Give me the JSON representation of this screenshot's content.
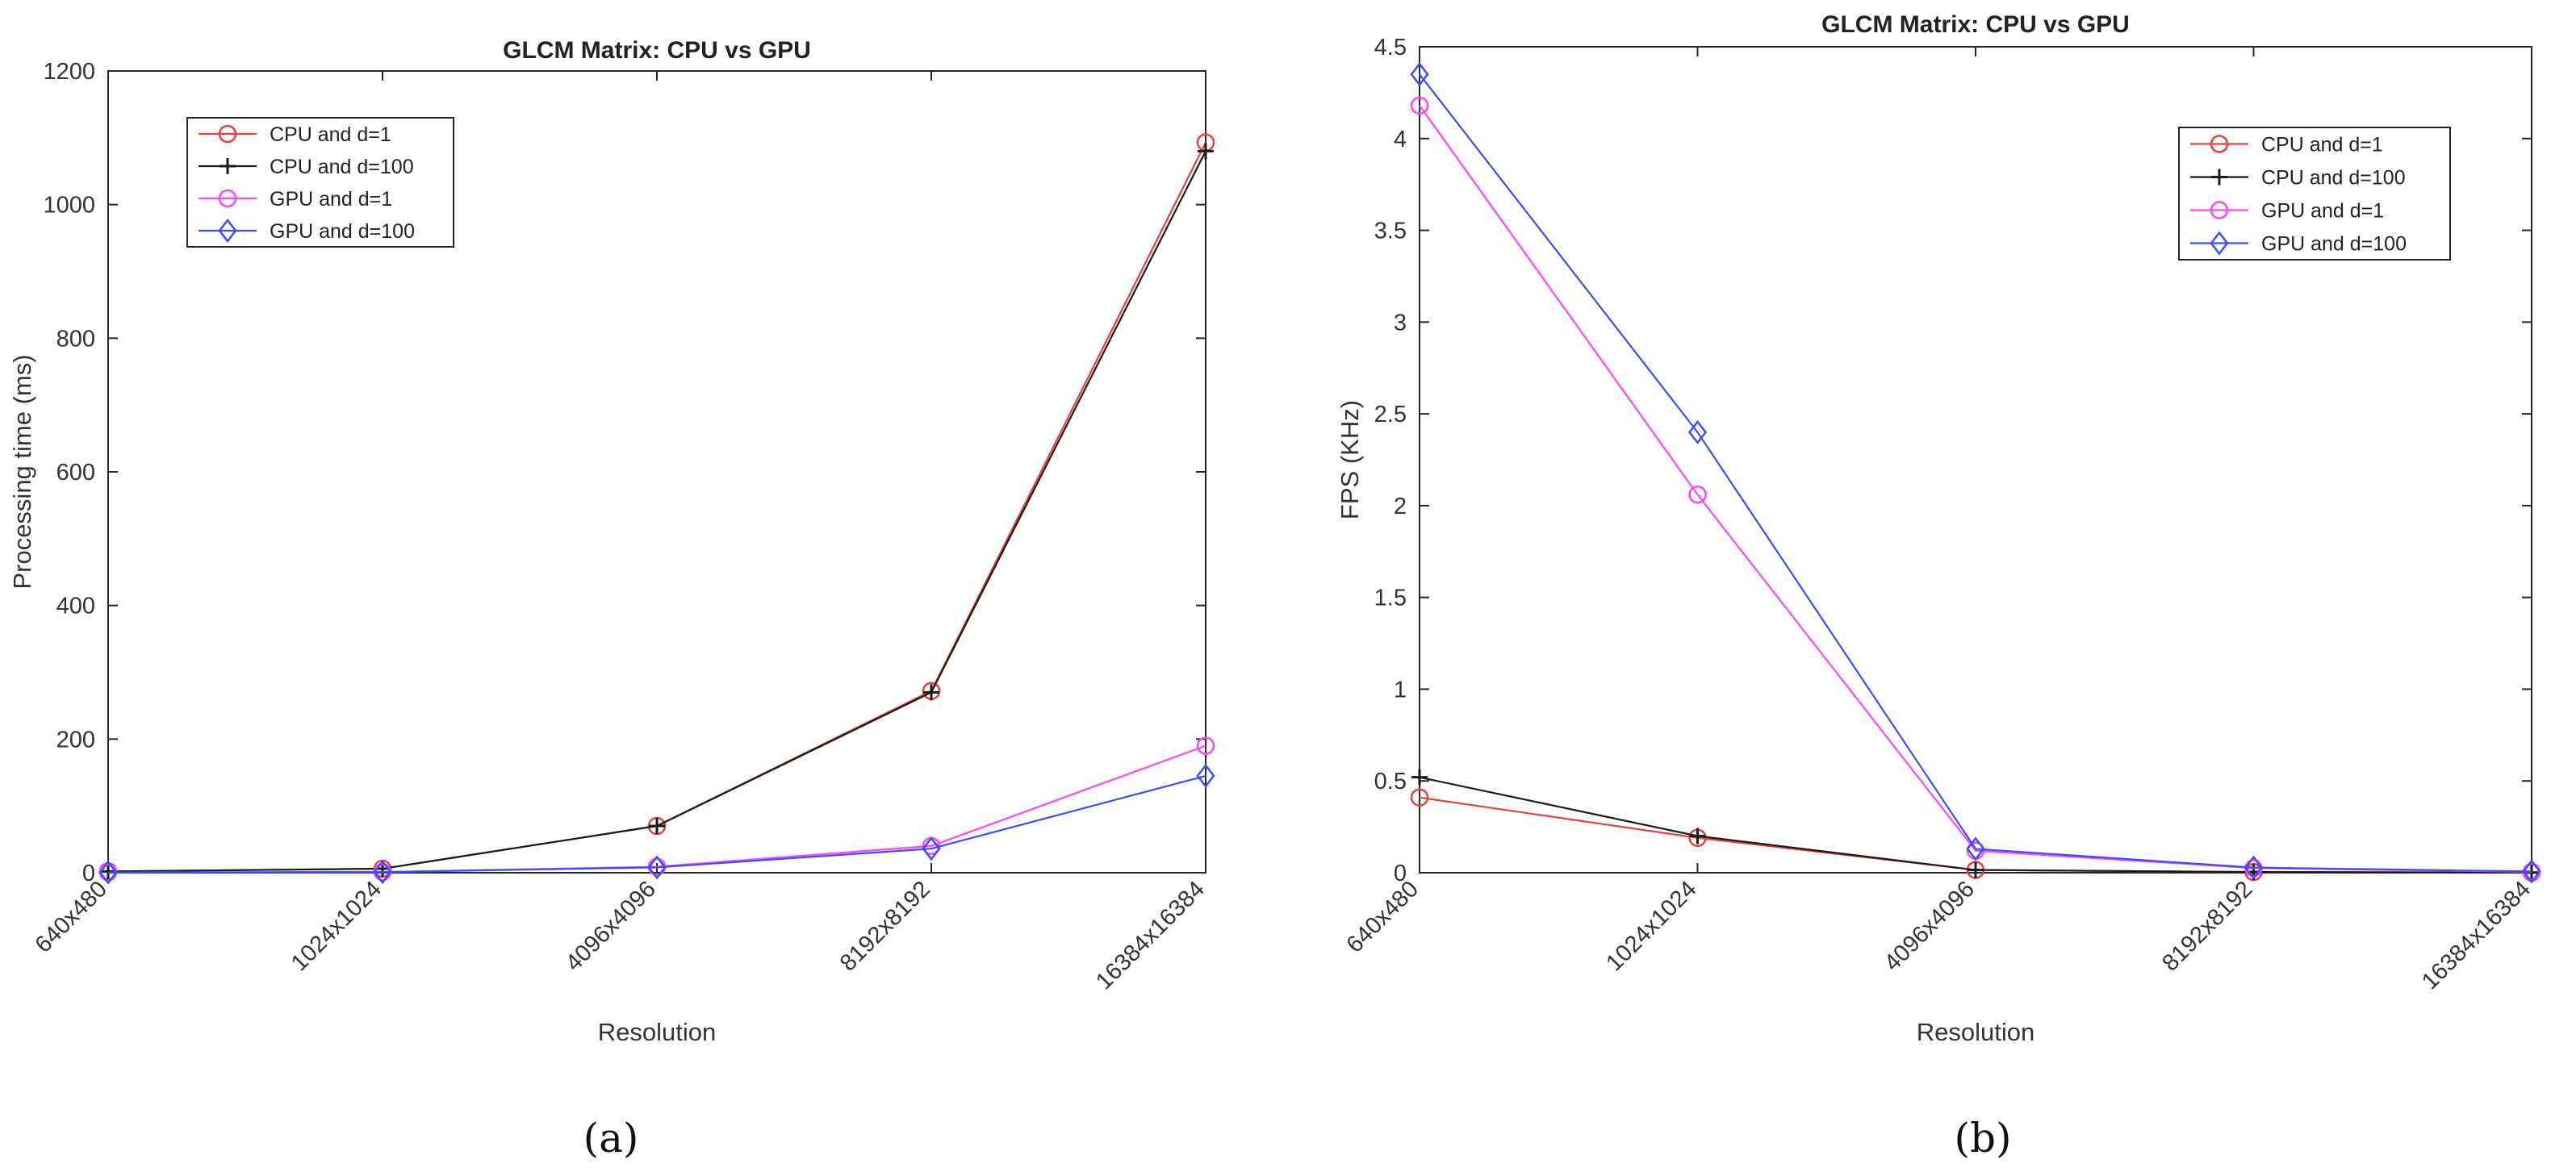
{
  "chart_data": [
    {
      "type": "line",
      "panel": "(a)",
      "title": "GLCM Matrix: CPU vs GPU",
      "xlabel": "Resolution",
      "ylabel": "Processing time (ms)",
      "ylim": [
        0,
        1200
      ],
      "yticks": [
        "0",
        "200",
        "400",
        "600",
        "800",
        "1000",
        "1200"
      ],
      "yticks_values": [
        0,
        200,
        400,
        600,
        800,
        1000,
        1200
      ],
      "categories": [
        "640x480",
        "1024x1024",
        "4096x4096",
        "8192x8192",
        "16384x16384"
      ],
      "legend_position": "top-left",
      "series": [
        {
          "name": "CPU and d=1",
          "color": "#e8403c",
          "marker": "circle",
          "values": [
            2,
            6,
            70,
            272,
            1093
          ]
        },
        {
          "name": "CPU and d=100",
          "color": "#1a1a1a",
          "marker": "plus",
          "values": [
            2,
            6,
            70,
            270,
            1080
          ]
        },
        {
          "name": "GPU and d=1",
          "color": "#ff44ff",
          "marker": "circle",
          "values": [
            0.5,
            1,
            9,
            40,
            190
          ]
        },
        {
          "name": "GPU and d=100",
          "color": "#3b4cff",
          "marker": "diamond",
          "values": [
            0.5,
            1,
            8,
            36,
            145
          ]
        }
      ]
    },
    {
      "type": "line",
      "panel": "(b)",
      "title": "GLCM Matrix: CPU vs GPU",
      "xlabel": "Resolution",
      "ylabel": "FPS (KHz)",
      "ylim": [
        0,
        4.5
      ],
      "yticks": [
        "0",
        "0.5",
        "1",
        "1.5",
        "2",
        "2.5",
        "3",
        "3.5",
        "4",
        "4.5"
      ],
      "yticks_values": [
        0,
        0.5,
        1,
        1.5,
        2,
        2.5,
        3,
        3.5,
        4,
        4.5
      ],
      "categories": [
        "640x480",
        "1024x1024",
        "4096x4096",
        "8192x8192",
        "16384x16384"
      ],
      "legend_position": "top-right",
      "series": [
        {
          "name": "CPU and d=1",
          "color": "#e8403c",
          "marker": "circle",
          "values": [
            0.41,
            0.19,
            0.015,
            0.004,
            0.001
          ]
        },
        {
          "name": "CPU and d=100",
          "color": "#1a1a1a",
          "marker": "plus",
          "values": [
            0.52,
            0.2,
            0.015,
            0.004,
            0.001
          ]
        },
        {
          "name": "GPU and d=1",
          "color": "#ff44ff",
          "marker": "circle",
          "values": [
            4.18,
            2.06,
            0.12,
            0.025,
            0.005
          ]
        },
        {
          "name": "GPU and d=100",
          "color": "#3b4cff",
          "marker": "diamond",
          "values": [
            4.35,
            2.4,
            0.13,
            0.028,
            0.007
          ]
        }
      ]
    }
  ]
}
